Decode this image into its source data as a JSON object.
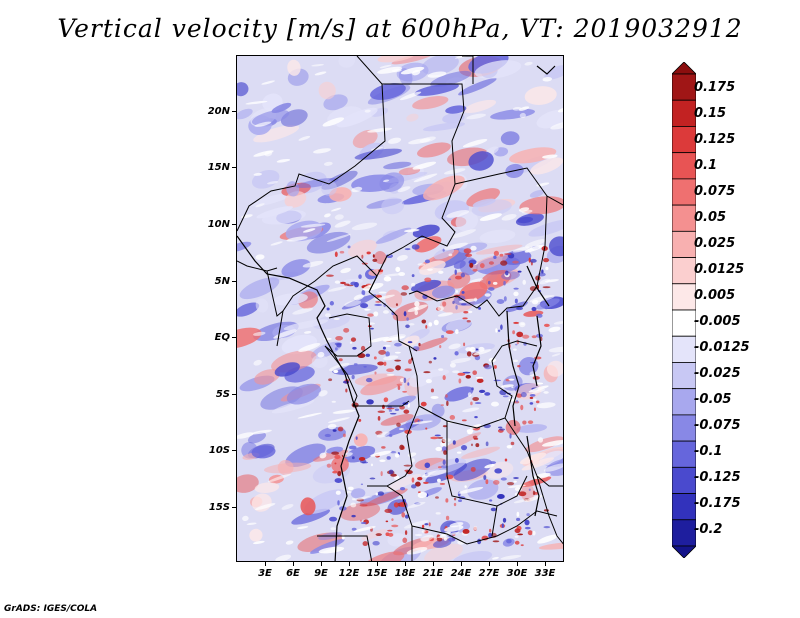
{
  "title": "Vertical velocity [m/s] at 600hPa, VT: 2019032912",
  "credit": "GrADS: IGES/COLA",
  "map": {
    "lat_labels": [
      "20N",
      "15N",
      "10N",
      "5N",
      "EQ",
      "5S",
      "10S",
      "15S"
    ],
    "lon_labels": [
      "3E",
      "6E",
      "9E",
      "12E",
      "15E",
      "18E",
      "21E",
      "24E",
      "27E",
      "30E",
      "33E"
    ]
  },
  "colorbar": {
    "labels": [
      "0.175",
      "0.15",
      "0.125",
      "0.1",
      "0.075",
      "0.05",
      "0.025",
      "0.0125",
      "0.005",
      "-0.005",
      "-0.0125",
      "-0.025",
      "-0.05",
      "-0.075",
      "-0.1",
      "-0.125",
      "-0.175",
      "-0.2"
    ],
    "colors": [
      "#a01616",
      "#c22222",
      "#dc3a3a",
      "#e85454",
      "#ef7070",
      "#f49090",
      "#f8b0b0",
      "#fbcfcf",
      "#fde8e8",
      "#ffffff",
      "#e4e4fa",
      "#c8c8f4",
      "#a8a8ee",
      "#8888e6",
      "#6666dc",
      "#4a4ace",
      "#3232bc",
      "#1e1e9e"
    ]
  }
}
